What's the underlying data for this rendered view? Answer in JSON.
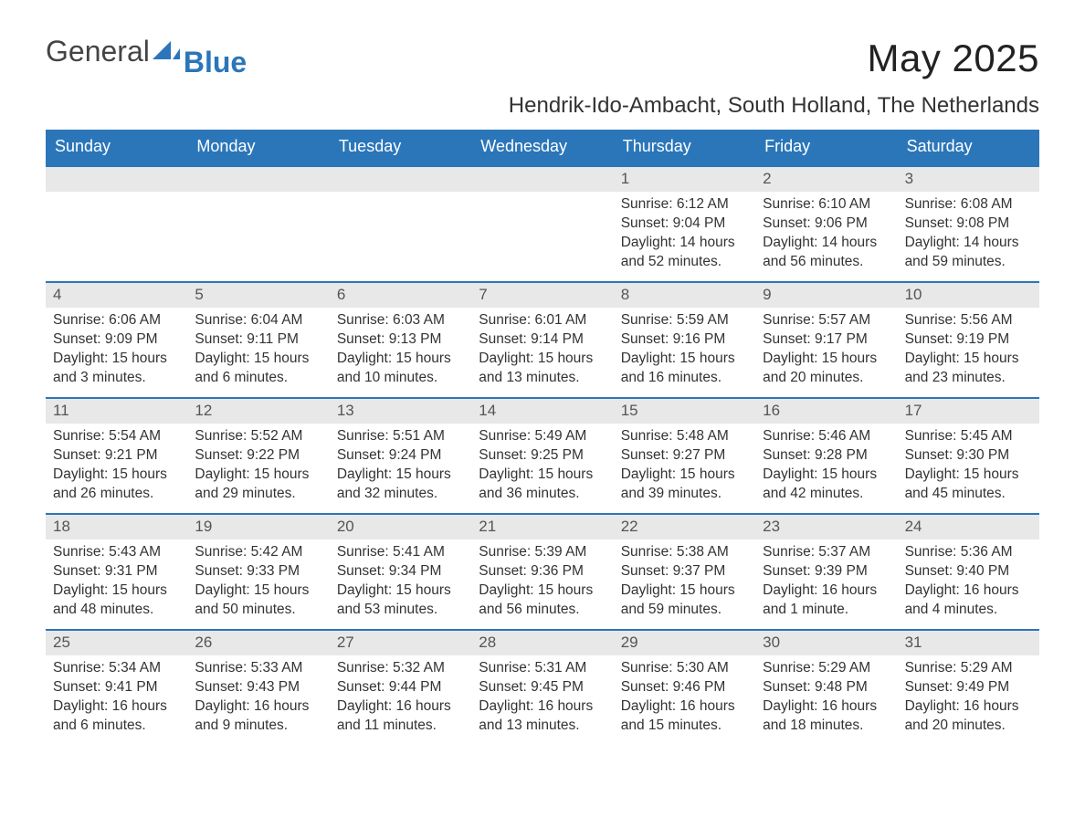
{
  "logo": {
    "general": "General",
    "blue": "Blue"
  },
  "title": "May 2025",
  "location": "Hendrik-Ido-Ambacht, South Holland, The Netherlands",
  "colors": {
    "header_bg": "#2b76b9",
    "header_fg": "#ffffff",
    "daynum_bg": "#e8e8e8",
    "row_border": "#2b76b9",
    "text": "#333333",
    "logo_blue": "#2b76b9",
    "background": "#ffffff"
  },
  "weekdays": [
    "Sunday",
    "Monday",
    "Tuesday",
    "Wednesday",
    "Thursday",
    "Friday",
    "Saturday"
  ],
  "weeks": [
    [
      null,
      null,
      null,
      null,
      {
        "n": "1",
        "sunrise": "Sunrise: 6:12 AM",
        "sunset": "Sunset: 9:04 PM",
        "daylight": "Daylight: 14 hours and 52 minutes."
      },
      {
        "n": "2",
        "sunrise": "Sunrise: 6:10 AM",
        "sunset": "Sunset: 9:06 PM",
        "daylight": "Daylight: 14 hours and 56 minutes."
      },
      {
        "n": "3",
        "sunrise": "Sunrise: 6:08 AM",
        "sunset": "Sunset: 9:08 PM",
        "daylight": "Daylight: 14 hours and 59 minutes."
      }
    ],
    [
      {
        "n": "4",
        "sunrise": "Sunrise: 6:06 AM",
        "sunset": "Sunset: 9:09 PM",
        "daylight": "Daylight: 15 hours and 3 minutes."
      },
      {
        "n": "5",
        "sunrise": "Sunrise: 6:04 AM",
        "sunset": "Sunset: 9:11 PM",
        "daylight": "Daylight: 15 hours and 6 minutes."
      },
      {
        "n": "6",
        "sunrise": "Sunrise: 6:03 AM",
        "sunset": "Sunset: 9:13 PM",
        "daylight": "Daylight: 15 hours and 10 minutes."
      },
      {
        "n": "7",
        "sunrise": "Sunrise: 6:01 AM",
        "sunset": "Sunset: 9:14 PM",
        "daylight": "Daylight: 15 hours and 13 minutes."
      },
      {
        "n": "8",
        "sunrise": "Sunrise: 5:59 AM",
        "sunset": "Sunset: 9:16 PM",
        "daylight": "Daylight: 15 hours and 16 minutes."
      },
      {
        "n": "9",
        "sunrise": "Sunrise: 5:57 AM",
        "sunset": "Sunset: 9:17 PM",
        "daylight": "Daylight: 15 hours and 20 minutes."
      },
      {
        "n": "10",
        "sunrise": "Sunrise: 5:56 AM",
        "sunset": "Sunset: 9:19 PM",
        "daylight": "Daylight: 15 hours and 23 minutes."
      }
    ],
    [
      {
        "n": "11",
        "sunrise": "Sunrise: 5:54 AM",
        "sunset": "Sunset: 9:21 PM",
        "daylight": "Daylight: 15 hours and 26 minutes."
      },
      {
        "n": "12",
        "sunrise": "Sunrise: 5:52 AM",
        "sunset": "Sunset: 9:22 PM",
        "daylight": "Daylight: 15 hours and 29 minutes."
      },
      {
        "n": "13",
        "sunrise": "Sunrise: 5:51 AM",
        "sunset": "Sunset: 9:24 PM",
        "daylight": "Daylight: 15 hours and 32 minutes."
      },
      {
        "n": "14",
        "sunrise": "Sunrise: 5:49 AM",
        "sunset": "Sunset: 9:25 PM",
        "daylight": "Daylight: 15 hours and 36 minutes."
      },
      {
        "n": "15",
        "sunrise": "Sunrise: 5:48 AM",
        "sunset": "Sunset: 9:27 PM",
        "daylight": "Daylight: 15 hours and 39 minutes."
      },
      {
        "n": "16",
        "sunrise": "Sunrise: 5:46 AM",
        "sunset": "Sunset: 9:28 PM",
        "daylight": "Daylight: 15 hours and 42 minutes."
      },
      {
        "n": "17",
        "sunrise": "Sunrise: 5:45 AM",
        "sunset": "Sunset: 9:30 PM",
        "daylight": "Daylight: 15 hours and 45 minutes."
      }
    ],
    [
      {
        "n": "18",
        "sunrise": "Sunrise: 5:43 AM",
        "sunset": "Sunset: 9:31 PM",
        "daylight": "Daylight: 15 hours and 48 minutes."
      },
      {
        "n": "19",
        "sunrise": "Sunrise: 5:42 AM",
        "sunset": "Sunset: 9:33 PM",
        "daylight": "Daylight: 15 hours and 50 minutes."
      },
      {
        "n": "20",
        "sunrise": "Sunrise: 5:41 AM",
        "sunset": "Sunset: 9:34 PM",
        "daylight": "Daylight: 15 hours and 53 minutes."
      },
      {
        "n": "21",
        "sunrise": "Sunrise: 5:39 AM",
        "sunset": "Sunset: 9:36 PM",
        "daylight": "Daylight: 15 hours and 56 minutes."
      },
      {
        "n": "22",
        "sunrise": "Sunrise: 5:38 AM",
        "sunset": "Sunset: 9:37 PM",
        "daylight": "Daylight: 15 hours and 59 minutes."
      },
      {
        "n": "23",
        "sunrise": "Sunrise: 5:37 AM",
        "sunset": "Sunset: 9:39 PM",
        "daylight": "Daylight: 16 hours and 1 minute."
      },
      {
        "n": "24",
        "sunrise": "Sunrise: 5:36 AM",
        "sunset": "Sunset: 9:40 PM",
        "daylight": "Daylight: 16 hours and 4 minutes."
      }
    ],
    [
      {
        "n": "25",
        "sunrise": "Sunrise: 5:34 AM",
        "sunset": "Sunset: 9:41 PM",
        "daylight": "Daylight: 16 hours and 6 minutes."
      },
      {
        "n": "26",
        "sunrise": "Sunrise: 5:33 AM",
        "sunset": "Sunset: 9:43 PM",
        "daylight": "Daylight: 16 hours and 9 minutes."
      },
      {
        "n": "27",
        "sunrise": "Sunrise: 5:32 AM",
        "sunset": "Sunset: 9:44 PM",
        "daylight": "Daylight: 16 hours and 11 minutes."
      },
      {
        "n": "28",
        "sunrise": "Sunrise: 5:31 AM",
        "sunset": "Sunset: 9:45 PM",
        "daylight": "Daylight: 16 hours and 13 minutes."
      },
      {
        "n": "29",
        "sunrise": "Sunrise: 5:30 AM",
        "sunset": "Sunset: 9:46 PM",
        "daylight": "Daylight: 16 hours and 15 minutes."
      },
      {
        "n": "30",
        "sunrise": "Sunrise: 5:29 AM",
        "sunset": "Sunset: 9:48 PM",
        "daylight": "Daylight: 16 hours and 18 minutes."
      },
      {
        "n": "31",
        "sunrise": "Sunrise: 5:29 AM",
        "sunset": "Sunset: 9:49 PM",
        "daylight": "Daylight: 16 hours and 20 minutes."
      }
    ]
  ]
}
